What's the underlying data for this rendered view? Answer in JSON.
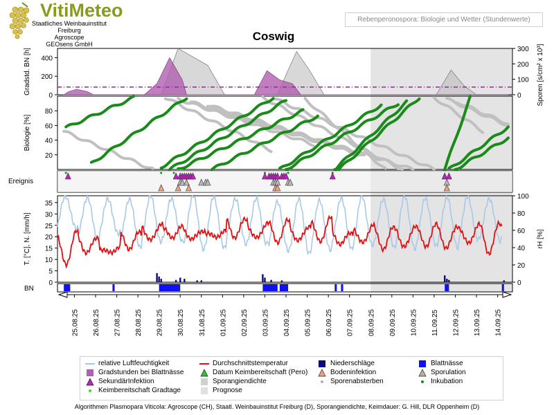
{
  "header": {
    "logo_text": "VitiMeteo",
    "org_lines": [
      "Staatliches Weinbauinstitut Freiburg",
      "Agroscope",
      "GEOsens GmbH"
    ],
    "subtitle": "Rebenperonospora: Biologie und Wetter (Stundenwerte)",
    "title": "Coswig"
  },
  "footer": "Algorithmen Plasmopara Viticola: Agroscope (CH), Staatl. Weinbauinstitut Freiburg (D), Sporangiendichte, Keimdauer: G. Hill, DLR Oppenheim (D)",
  "colors": {
    "humidity": "#a8c8e8",
    "temperature": "#e01010",
    "precip": "#0a0a80",
    "leafwet": "#1010f0",
    "degree_hours": "#b060b0",
    "sporangia": "#b8b8b8",
    "biology_green": "#1a8a1a",
    "biology_grey": "#c0c0c0",
    "secondary_infection": "#c020c0",
    "soil_infection": "#f0a080",
    "forecast_shade": "#e4e4e4"
  },
  "chart_data": {
    "type": "line",
    "x_range": [
      "24.08.25",
      "14.09.25"
    ],
    "date_ticks": [
      "25.08.25",
      "26.08.25",
      "27.08.25",
      "28.08.25",
      "29.08.25",
      "30.08.25",
      "31.08.25",
      "01.09.25",
      "02.09.25",
      "03.09.25",
      "04.09.25",
      "05.09.25",
      "06.09.25",
      "07.09.25",
      "08.09.25",
      "09.09.25",
      "10.09.25",
      "11.09.25",
      "12.09.25",
      "13.09.25",
      "14.09.25"
    ],
    "forecast_start_day": 14.5,
    "panels": {
      "top": {
        "ylabel_left": "Gradstd. BN [h]",
        "ylabel_right": "Sporen [s/cm² x 10³]",
        "left_ticks": [
          0,
          200,
          400
        ],
        "left_range": [
          0,
          500
        ],
        "right_ticks": [
          0,
          100,
          200,
          300
        ],
        "right_range": [
          0,
          300
        ],
        "threshold_line": 50,
        "degree_hours": [
          [
            0,
            0
          ],
          [
            0.2,
            30
          ],
          [
            0.6,
            60
          ],
          [
            1.1,
            35
          ],
          [
            1.4,
            0
          ],
          [
            3.8,
            0
          ],
          [
            4.4,
            120
          ],
          [
            5.0,
            400
          ],
          [
            5.6,
            160
          ],
          [
            5.8,
            0
          ],
          [
            9.0,
            0
          ],
          [
            9.6,
            260
          ],
          [
            10.2,
            160
          ],
          [
            10.8,
            120
          ],
          [
            11.2,
            0
          ],
          [
            21,
            0
          ]
        ],
        "sporangia": [
          [
            4.6,
            0
          ],
          [
            5.4,
            300
          ],
          [
            6.8,
            190
          ],
          [
            7.6,
            0
          ],
          [
            10.1,
            0
          ],
          [
            10.6,
            160
          ],
          [
            11.0,
            280
          ],
          [
            11.6,
            160
          ],
          [
            12.3,
            0
          ],
          [
            17.6,
            0
          ],
          [
            18.3,
            160
          ],
          [
            18.9,
            60
          ],
          [
            19.5,
            0
          ]
        ]
      },
      "biology": {
        "ylabel": "Biologie [%]",
        "ticks": [
          20,
          40,
          60,
          80
        ],
        "range": [
          0,
          100
        ],
        "green_lines": [
          [
            [
              0.1,
              57
            ],
            [
              3.3,
              98
            ]
          ],
          [
            [
              1.3,
              8
            ],
            [
              5.8,
              98
            ]
          ],
          [
            [
              4.6,
              3
            ],
            [
              9.9,
              98
            ]
          ],
          [
            [
              5.0,
              0
            ],
            [
              10.5,
              94
            ]
          ],
          [
            [
              5.4,
              0
            ],
            [
              11.3,
              80
            ]
          ],
          [
            [
              7.0,
              0
            ],
            [
              12.0,
              73
            ]
          ],
          [
            [
              10.2,
              0
            ],
            [
              15.0,
              88
            ]
          ],
          [
            [
              10.5,
              0
            ],
            [
              15.8,
              90
            ]
          ],
          [
            [
              12.8,
              0
            ],
            [
              16.2,
              92
            ]
          ],
          [
            [
              13.0,
              0
            ],
            [
              16.8,
              98
            ]
          ],
          [
            [
              18.0,
              0
            ],
            [
              19.2,
              98
            ]
          ],
          [
            [
              18.2,
              0
            ],
            [
              21.0,
              58
            ]
          ],
          [
            [
              18.5,
              0
            ],
            [
              21.0,
              43
            ]
          ]
        ],
        "grey_lines": [
          [
            [
              0,
              52
            ],
            [
              4.2,
              0
            ]
          ],
          [
            [
              4.8,
              98
            ],
            [
              9.8,
              26
            ]
          ],
          [
            [
              5.4,
              96
            ],
            [
              11.8,
              34
            ]
          ],
          [
            [
              6.0,
              92
            ],
            [
              14.2,
              18
            ]
          ],
          [
            [
              6.8,
              88
            ],
            [
              16.5,
              0
            ]
          ],
          [
            [
              9.4,
              98
            ],
            [
              16.0,
              0
            ]
          ],
          [
            [
              10.0,
              96
            ],
            [
              17.5,
              0
            ]
          ],
          [
            [
              11.4,
              96
            ],
            [
              15.2,
              0
            ]
          ],
          [
            [
              17.5,
              98
            ],
            [
              19.8,
              52
            ]
          ],
          [
            [
              18.1,
              96
            ],
            [
              21.0,
              60
            ]
          ],
          [
            [
              18.6,
              92
            ],
            [
              21.0,
              62
            ]
          ]
        ]
      },
      "events": {
        "label": "Ereignis",
        "secondary_infection_days": [
          0.2,
          5.3,
          5.5,
          5.6,
          5.7,
          5.8,
          5.9,
          6.0,
          6.1,
          9.5,
          9.7,
          9.8,
          9.9,
          10.0,
          10.1,
          10.3,
          10.4,
          10.5,
          12.7,
          18.0,
          18.2
        ],
        "sporulation_days": [
          5.5,
          5.6,
          5.8,
          6.5,
          6.7,
          6.8,
          9.9,
          10.0,
          10.1,
          10.6,
          10.7,
          18.1
        ],
        "soil_infection_days": [
          4.6,
          5.4,
          5.9,
          10.0,
          10.1,
          18.1
        ],
        "incubation_days": [
          0.1,
          4.6,
          5.2,
          9.5,
          10.6,
          12.7
        ]
      },
      "weather": {
        "ylabel_left": "T. [°C], N. [mm/h]",
        "ylabel_right": "rH [%]",
        "left_ticks": [
          0,
          5,
          10,
          15,
          20,
          25,
          30,
          35
        ],
        "left_range": [
          0,
          38
        ],
        "right_ticks": [
          0,
          20,
          40,
          60,
          80,
          100
        ],
        "right_range": [
          0,
          100
        ]
      },
      "leaf_wetness": {
        "label": "BN",
        "intervals": [
          [
            0,
            0.3
          ],
          [
            2.3,
            2.4
          ],
          [
            4.5,
            5.5
          ],
          [
            9.4,
            10.1
          ],
          [
            10.2,
            10.6
          ],
          [
            12.8,
            12.9
          ],
          [
            13.1,
            13.2
          ],
          [
            18.0,
            18.2
          ],
          [
            20.7,
            20.8
          ]
        ]
      }
    },
    "precip_bars": [
      [
        4.4,
        4.0
      ],
      [
        4.5,
        2.5
      ],
      [
        4.6,
        1.5
      ],
      [
        5.3,
        1.0
      ],
      [
        5.5,
        2.0
      ],
      [
        5.7,
        1.5
      ],
      [
        6.3,
        0.8
      ],
      [
        6.5,
        0.8
      ],
      [
        9.4,
        3.5
      ],
      [
        9.5,
        2.0
      ],
      [
        9.8,
        1.0
      ],
      [
        10.3,
        0.8
      ],
      [
        18.0,
        3.0
      ],
      [
        18.1,
        1.5
      ],
      [
        18.2,
        1.0
      ],
      [
        20.8,
        0.8
      ]
    ],
    "temperature_profile": {
      "day_max": [
        22,
        20,
        15,
        22,
        26,
        24,
        23,
        22,
        28,
        26,
        27,
        25,
        28,
        22,
        25,
        24,
        25,
        25,
        25,
        25,
        26
      ],
      "night_min": [
        8,
        13,
        13,
        15,
        18,
        20,
        19,
        20,
        20,
        19,
        18,
        18,
        18,
        17,
        17,
        15,
        15,
        16,
        15,
        17,
        13
      ]
    },
    "humidity_profile": {
      "day_min": [
        60,
        50,
        55,
        40,
        48,
        45,
        40,
        38,
        45,
        45,
        35,
        35,
        35,
        40,
        42,
        40,
        40,
        40,
        42,
        48,
        48
      ],
      "night_max": [
        100,
        98,
        95,
        98,
        98,
        98,
        100,
        98,
        98,
        95,
        95,
        95,
        95,
        98,
        98,
        98,
        98,
        98,
        98,
        98,
        98
      ]
    },
    "legend": [
      {
        "label": "relative Luftfeuchtigkeit",
        "sym": "line",
        "color": "#a8c8e8"
      },
      {
        "label": "Durchschnittstemperatur",
        "sym": "line",
        "color": "#e01010"
      },
      {
        "label": "Niederschläge",
        "sym": "square",
        "color": "#0a0a80"
      },
      {
        "label": "Blattnässe",
        "sym": "square",
        "color": "#1010f0"
      },
      {
        "label": "Gradstunden bei Blattnässe",
        "sym": "square",
        "color": "#b060b0"
      },
      {
        "label": "Datum Keimbereitschaft (Pero)",
        "sym": "triangle",
        "color": "#30c030"
      },
      {
        "label": "Bodeninfektion",
        "sym": "triangle",
        "color": "#f0a080"
      },
      {
        "label": "Sporulation",
        "sym": "triangle",
        "color": "#b0b0b0"
      },
      {
        "label": "SekundärInfektion",
        "sym": "triangle",
        "color": "#c020c0"
      },
      {
        "label": "Sporangiendichte",
        "sym": "square",
        "color": "#d0d0d0"
      },
      {
        "label": "Sporenabsterben",
        "sym": "dot",
        "color": "#b0b0b0"
      },
      {
        "label": "Inkubation",
        "sym": "dot",
        "color": "#109010"
      },
      {
        "label": "Keimbereitschaft Gradtage",
        "sym": "dot",
        "color": "#30e030"
      },
      {
        "label": "Prognose",
        "sym": "square",
        "color": "#e0e0e0"
      }
    ]
  }
}
